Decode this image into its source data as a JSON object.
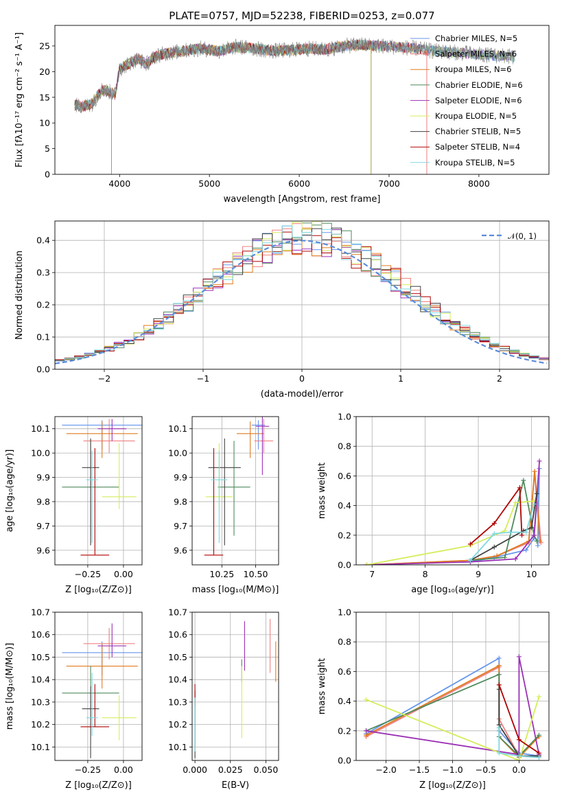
{
  "figure": {
    "title": "PLATE=0757, MJD=52238, FIBERID=0253, z=0.077"
  },
  "chart_data": [
    {
      "id": "spectrum",
      "type": "line",
      "xlabel": "wavelength [Angstrom, rest frame]",
      "ylabel": "Flux [fλ10⁻¹⁷ erg cm⁻² s⁻¹ A⁻¹]",
      "xlim": [
        3280,
        8780
      ],
      "ylim": [
        0,
        29
      ],
      "xticks": [
        4000,
        5000,
        6000,
        7000,
        8000
      ],
      "yticks": [
        0,
        5,
        10,
        15,
        20,
        25
      ],
      "legend_position": "top-right",
      "legend": [
        {
          "label": "Chabrier MILES, N_SSP=5",
          "color": "#6495ed"
        },
        {
          "label": "Salpeter MILES, N_SSP=6",
          "color": "#f08080"
        },
        {
          "label": "Kroupa MILES, N_SSP=6",
          "color": "#e07b1f"
        },
        {
          "label": "Chabrier ELODIE, N_SSP=6",
          "color": "#4e8a5b"
        },
        {
          "label": "Salpeter ELODIE, N_SSP=6",
          "color": "#9b30b5"
        },
        {
          "label": "Kroupa ELODIE, N_SSP=5",
          "color": "#d4ed5b"
        },
        {
          "label": "Chabrier STELIB, N_SSP=5",
          "color": "#404040"
        },
        {
          "label": "Salpeter STELIB, N_SSP=4",
          "color": "#b00000"
        },
        {
          "label": "Kroupa STELIB, N_SSP=5",
          "color": "#7fd8e0"
        }
      ],
      "continuum": [
        [
          3500,
          13.5
        ],
        [
          3600,
          13.2
        ],
        [
          3700,
          13.8
        ],
        [
          3800,
          16.5
        ],
        [
          3900,
          16.0
        ],
        [
          3950,
          15.5
        ],
        [
          4000,
          20.5
        ],
        [
          4100,
          21.5
        ],
        [
          4200,
          22.5
        ],
        [
          4300,
          21.5
        ],
        [
          4400,
          23.0
        ],
        [
          4500,
          23.5
        ],
        [
          4700,
          24.0
        ],
        [
          4900,
          24.5
        ],
        [
          5100,
          24.0
        ],
        [
          5300,
          24.8
        ],
        [
          5500,
          24.5
        ],
        [
          5700,
          24.0
        ],
        [
          5900,
          24.2
        ],
        [
          6100,
          24.5
        ],
        [
          6300,
          24.3
        ],
        [
          6500,
          25.0
        ],
        [
          6700,
          25.2
        ],
        [
          6900,
          25.0
        ],
        [
          7100,
          24.8
        ],
        [
          7300,
          24.5
        ],
        [
          7500,
          24.0
        ],
        [
          7700,
          23.8
        ],
        [
          7900,
          23.5
        ],
        [
          8100,
          23.2
        ],
        [
          8300,
          23.0
        ],
        [
          8400,
          22.8
        ]
      ],
      "data_end": 7420
    },
    {
      "id": "residuals",
      "type": "histogram",
      "xlabel": "(data-model)/error",
      "ylabel": "Normed distribution",
      "xlim": [
        -2.5,
        2.5
      ],
      "ylim": [
        0,
        0.46
      ],
      "xticks": [
        -2,
        -1,
        0,
        1,
        2
      ],
      "yticks": [
        0.0,
        0.1,
        0.2,
        0.3,
        0.4
      ],
      "legend_position": "top-right",
      "legend": [
        {
          "label": "𝒩(0, 1)",
          "color": "#5b8bd9"
        }
      ],
      "bin_width": 0.1,
      "reference_curve": "normal(0,1)"
    },
    {
      "id": "age_vs_Z",
      "type": "scatter",
      "xlabel": "Z [log₁₀(Z/Z⊙)]",
      "ylabel": "age  [log₁₀(age/yr)]",
      "xlim": [
        -0.48,
        0.13
      ],
      "ylim": [
        9.54,
        10.15
      ],
      "xticks": [
        -0.25,
        0.0
      ],
      "yticks": [
        9.6,
        9.7,
        9.8,
        9.9,
        10.0,
        10.1
      ],
      "points": [
        {
          "x": -0.15,
          "y": 10.115,
          "xerr": 0.28,
          "yerr_lo": 0.1,
          "yerr_hi": 0.02,
          "color": "#6495ed"
        },
        {
          "x": -0.1,
          "y": 10.05,
          "xerr": 0.18,
          "yerr_lo": 0.05,
          "yerr_hi": 0.09,
          "color": "#f08080"
        },
        {
          "x": -0.15,
          "y": 10.08,
          "xerr": 0.25,
          "yerr_lo": 0.1,
          "yerr_hi": 0.05,
          "color": "#e07b1f"
        },
        {
          "x": -0.23,
          "y": 9.86,
          "xerr": 0.2,
          "yerr_lo": 0.2,
          "yerr_hi": 0.19,
          "color": "#4e8a5b"
        },
        {
          "x": -0.08,
          "y": 10.1,
          "xerr": 0.1,
          "yerr_lo": 0.05,
          "yerr_hi": 0.04,
          "color": "#9b30b5"
        },
        {
          "x": -0.03,
          "y": 9.82,
          "xerr": 0.12,
          "yerr_lo": 0.05,
          "yerr_hi": 0.22,
          "color": "#d4ed5b"
        },
        {
          "x": -0.23,
          "y": 9.94,
          "xerr": 0.06,
          "yerr_lo": 0.32,
          "yerr_hi": 0.12,
          "color": "#404040"
        },
        {
          "x": -0.2,
          "y": 9.58,
          "xerr": 0.1,
          "yerr_lo": 0.0,
          "yerr_hi": 0.44,
          "color": "#b00000"
        },
        {
          "x": -0.22,
          "y": 9.89,
          "xerr": 0.04,
          "yerr_lo": 0.26,
          "yerr_hi": 0.12,
          "color": "#7fd8e0"
        }
      ]
    },
    {
      "id": "age_vs_mass",
      "type": "scatter",
      "xlabel": "mass [log₁₀(M/M⊙)]",
      "ylabel": "",
      "xlim": [
        10.03,
        10.67
      ],
      "ylim": [
        9.54,
        10.15
      ],
      "xticks": [
        10.25,
        10.5
      ],
      "yticks": [
        9.6,
        9.7,
        9.8,
        9.9,
        10.0,
        10.1
      ],
      "points": [
        {
          "x": 10.52,
          "y": 10.115,
          "xerr": 0.05,
          "yerr_lo": 0.1,
          "yerr_hi": 0.02,
          "color": "#6495ed"
        },
        {
          "x": 10.56,
          "y": 10.05,
          "xerr": 0.07,
          "yerr_lo": 0.05,
          "yerr_hi": 0.09,
          "color": "#f08080"
        },
        {
          "x": 10.46,
          "y": 10.08,
          "xerr": 0.1,
          "yerr_lo": 0.1,
          "yerr_hi": 0.05,
          "color": "#e07b1f"
        },
        {
          "x": 10.34,
          "y": 9.86,
          "xerr": 0.12,
          "yerr_lo": 0.2,
          "yerr_hi": 0.19,
          "color": "#4e8a5b"
        },
        {
          "x": 10.55,
          "y": 10.11,
          "xerr": 0.05,
          "yerr_lo": 0.2,
          "yerr_hi": 0.04,
          "color": "#9b30b5"
        },
        {
          "x": 10.23,
          "y": 9.82,
          "xerr": 0.1,
          "yerr_lo": 0.05,
          "yerr_hi": 0.22,
          "color": "#d4ed5b"
        },
        {
          "x": 10.27,
          "y": 9.94,
          "xerr": 0.12,
          "yerr_lo": 0.32,
          "yerr_hi": 0.12,
          "color": "#404040"
        },
        {
          "x": 10.19,
          "y": 9.58,
          "xerr": 0.07,
          "yerr_lo": 0.0,
          "yerr_hi": 0.44,
          "color": "#b00000"
        },
        {
          "x": 10.23,
          "y": 9.89,
          "xerr": 0.06,
          "yerr_lo": 0.26,
          "yerr_hi": 0.12,
          "color": "#7fd8e0"
        }
      ]
    },
    {
      "id": "mass_vs_Z",
      "type": "scatter",
      "xlabel": "Z [log₁₀(Z/Z⊙)]",
      "ylabel": "mass [log₁₀(M/M⊙)]",
      "xlim": [
        -0.48,
        0.13
      ],
      "ylim": [
        10.04,
        10.7
      ],
      "xticks": [
        -0.25,
        0.0
      ],
      "yticks": [
        10.1,
        10.2,
        10.3,
        10.4,
        10.5,
        10.6,
        10.7
      ],
      "points": [
        {
          "x": -0.15,
          "y": 10.52,
          "xerr": 0.28,
          "yerr_lo": 0.1,
          "yerr_hi": 0.05,
          "color": "#6495ed"
        },
        {
          "x": -0.1,
          "y": 10.56,
          "xerr": 0.18,
          "yerr_lo": 0.07,
          "yerr_hi": 0.07,
          "color": "#f08080"
        },
        {
          "x": -0.15,
          "y": 10.46,
          "xerr": 0.25,
          "yerr_lo": 0.1,
          "yerr_hi": 0.1,
          "color": "#e07b1f"
        },
        {
          "x": -0.23,
          "y": 10.34,
          "xerr": 0.2,
          "yerr_lo": 0.12,
          "yerr_hi": 0.12,
          "color": "#4e8a5b"
        },
        {
          "x": -0.08,
          "y": 10.55,
          "xerr": 0.1,
          "yerr_lo": 0.05,
          "yerr_hi": 0.1,
          "color": "#9b30b5"
        },
        {
          "x": -0.03,
          "y": 10.23,
          "xerr": 0.12,
          "yerr_lo": 0.1,
          "yerr_hi": 0.1,
          "color": "#d4ed5b"
        },
        {
          "x": -0.23,
          "y": 10.27,
          "xerr": 0.06,
          "yerr_lo": 0.22,
          "yerr_hi": 0.1,
          "color": "#404040"
        },
        {
          "x": -0.2,
          "y": 10.19,
          "xerr": 0.1,
          "yerr_lo": 0.0,
          "yerr_hi": 0.19,
          "color": "#b00000"
        },
        {
          "x": -0.22,
          "y": 10.23,
          "xerr": 0.04,
          "yerr_lo": 0.08,
          "yerr_hi": 0.2,
          "color": "#7fd8e0"
        }
      ]
    },
    {
      "id": "mass_vs_EBV",
      "type": "scatter",
      "xlabel": "E(B-V)",
      "ylabel": "",
      "xlim": [
        -0.002,
        0.059
      ],
      "ylim": [
        10.04,
        10.7
      ],
      "xticks": [
        0.0,
        0.025,
        0.05
      ],
      "xtick_labels": [
        "0.000",
        "0.025",
        "0.050"
      ],
      "yticks": [
        10.1,
        10.2,
        10.3,
        10.4,
        10.5,
        10.6,
        10.7
      ],
      "points": [
        {
          "x": 0.0,
          "y": 10.2,
          "yerr_lo": 0.1,
          "yerr_hi": 0.1,
          "color": "#6495ed"
        },
        {
          "x": 0.053,
          "y": 10.55,
          "yerr_lo": 0.12,
          "yerr_hi": 0.12,
          "color": "#f08080"
        },
        {
          "x": 0.057,
          "y": 10.48,
          "yerr_lo": 0.09,
          "yerr_hi": 0.09,
          "color": "#e07b1f"
        },
        {
          "x": 0.033,
          "y": 10.44,
          "yerr_lo": 0.05,
          "yerr_hi": 0.05,
          "color": "#4e8a5b"
        },
        {
          "x": 0.035,
          "y": 10.55,
          "yerr_lo": 0.11,
          "yerr_hi": 0.11,
          "color": "#9b30b5"
        },
        {
          "x": 0.033,
          "y": 10.3,
          "yerr_lo": 0.16,
          "yerr_hi": 0.16,
          "color": "#d4ed5b"
        },
        {
          "x": 0.0,
          "y": 10.2,
          "yerr_lo": 0.15,
          "yerr_hi": 0.15,
          "color": "#404040"
        },
        {
          "x": 0.0,
          "y": 10.33,
          "yerr_lo": 0.05,
          "yerr_hi": 0.05,
          "color": "#b00000"
        },
        {
          "x": 0.0,
          "y": 10.2,
          "yerr_lo": 0.12,
          "yerr_hi": 0.12,
          "color": "#7fd8e0"
        }
      ]
    },
    {
      "id": "mass_weight_vs_age",
      "type": "line",
      "xlabel": "age  [log₁₀(age/yr)]",
      "ylabel": "mass weight",
      "xlim": [
        6.7,
        10.33
      ],
      "ylim": [
        0,
        1.0
      ],
      "xticks": [
        7,
        8,
        9,
        10
      ],
      "yticks": [
        0.0,
        0.2,
        0.4,
        0.6,
        0.8,
        1.0
      ],
      "series": [
        {
          "color": "#6495ed",
          "x": [
            8.85,
            9.3,
            9.9,
            10.05,
            10.15,
            10.12
          ],
          "y": [
            0.02,
            0.05,
            0.1,
            0.18,
            0.65,
            0.13
          ]
        },
        {
          "color": "#f08080",
          "x": [
            6.9,
            8.85,
            9.35,
            9.95,
            10.06,
            10.18
          ],
          "y": [
            0.0,
            0.03,
            0.06,
            0.15,
            0.63,
            0.15
          ]
        },
        {
          "color": "#e07b1f",
          "x": [
            6.9,
            8.85,
            9.35,
            9.95,
            10.06,
            10.16
          ],
          "y": [
            0.0,
            0.03,
            0.06,
            0.16,
            0.63,
            0.16
          ]
        },
        {
          "color": "#4e8a5b",
          "x": [
            8.85,
            9.5,
            9.85,
            10.05,
            10.1
          ],
          "y": [
            0.03,
            0.05,
            0.57,
            0.2,
            0.16
          ]
        },
        {
          "color": "#9b30b5",
          "x": [
            6.9,
            8.85,
            9.7,
            10.05,
            10.15
          ],
          "y": [
            0.0,
            0.02,
            0.04,
            0.2,
            0.7
          ]
        },
        {
          "color": "#d4ed5b",
          "x": [
            6.9,
            8.85,
            9.5,
            9.7,
            10.05
          ],
          "y": [
            0.0,
            0.13,
            0.23,
            0.42,
            0.43
          ]
        },
        {
          "color": "#404040",
          "x": [
            8.85,
            9.3,
            9.85,
            10.0,
            10.1
          ],
          "y": [
            0.03,
            0.12,
            0.23,
            0.25,
            0.48
          ]
        },
        {
          "color": "#b00000",
          "x": [
            8.85,
            9.3,
            9.78,
            9.82
          ],
          "y": [
            0.14,
            0.28,
            0.52,
            0.2
          ]
        },
        {
          "color": "#7fd8e0",
          "x": [
            8.85,
            9.3,
            9.6,
            9.9,
            10.05
          ],
          "y": [
            0.03,
            0.21,
            0.22,
            0.22,
            0.41
          ]
        }
      ]
    },
    {
      "id": "mass_weight_vs_Z",
      "type": "line",
      "xlabel": "Z [log₁₀(Z/Z⊙)]",
      "ylabel": "mass weight",
      "xlim": [
        -2.45,
        0.45
      ],
      "ylim": [
        0,
        1.0
      ],
      "xticks": [
        -2.0,
        -1.5,
        -1.0,
        -0.5,
        0.0
      ],
      "xtick_labels": [
        "−2.0",
        "−1.5",
        "−1.0",
        "−0.5",
        "0.0"
      ],
      "yticks": [
        0.0,
        0.2,
        0.4,
        0.6,
        0.8,
        1.0
      ],
      "series": [
        {
          "color": "#6495ed",
          "x": [
            -2.3,
            -0.3,
            -0.3,
            0.0,
            0.3
          ],
          "y": [
            0.18,
            0.69,
            0.2,
            0.05,
            0.03
          ]
        },
        {
          "color": "#f08080",
          "x": [
            -2.3,
            -0.3,
            -0.3,
            0.0,
            0.3
          ],
          "y": [
            0.16,
            0.63,
            0.28,
            0.03,
            0.02
          ]
        },
        {
          "color": "#e07b1f",
          "x": [
            -2.3,
            -0.3,
            -0.3,
            0.0,
            0.3
          ],
          "y": [
            0.17,
            0.64,
            0.16,
            0.02,
            0.16
          ]
        },
        {
          "color": "#4e8a5b",
          "x": [
            -2.3,
            -0.3,
            -0.3,
            0.0,
            0.3
          ],
          "y": [
            0.2,
            0.58,
            0.16,
            0.03,
            0.17
          ]
        },
        {
          "color": "#9b30b5",
          "x": [
            -2.3,
            0.0,
            0.0,
            0.3
          ],
          "y": [
            0.2,
            0.04,
            0.7,
            0.04
          ]
        },
        {
          "color": "#d4ed5b",
          "x": [
            -2.3,
            0.0,
            0.3
          ],
          "y": [
            0.41,
            0.0,
            0.43
          ]
        },
        {
          "color": "#404040",
          "x": [
            -0.3,
            -0.3,
            0.0,
            0.3
          ],
          "y": [
            0.48,
            0.24,
            0.03,
            0.03
          ]
        },
        {
          "color": "#b00000",
          "x": [
            -0.3,
            0.0,
            0.3
          ],
          "y": [
            0.51,
            0.14,
            0.05
          ]
        },
        {
          "color": "#7fd8e0",
          "x": [
            -0.3,
            -0.3,
            0.0,
            0.3
          ],
          "y": [
            0.22,
            0.05,
            0.03,
            0.02
          ]
        }
      ]
    }
  ]
}
